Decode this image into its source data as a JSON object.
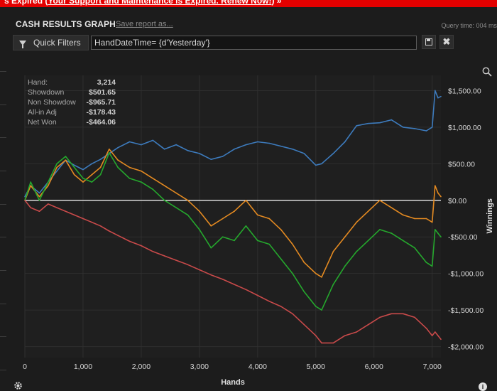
{
  "banner": {
    "prefix": "s   Expired (",
    "link_text": "Your Support and Maintenance is Expired. Renew Now!",
    "suffix": ")  »"
  },
  "header": {
    "title": "CASH RESULTS GRAPH",
    "save_link": "Save report as...",
    "query_time": "Query time: 004 ms"
  },
  "filter": {
    "quick_filters_label": "Quick Filters",
    "value": "HandDateTime= {d'Yesterday'}"
  },
  "stats": [
    {
      "label": "Hand:",
      "value": "3,214"
    },
    {
      "label": "Showdown",
      "value": "$501.65"
    },
    {
      "label": "Non Showdow",
      "value": "-$965.71"
    },
    {
      "label": "All-in Adj",
      "value": "-$178.43"
    },
    {
      "label": "Net Won",
      "value": "-$464.06"
    }
  ],
  "colors": {
    "blue": "#3d7bbd",
    "orange": "#e48a21",
    "green": "#25a82d",
    "red": "#c94a4a",
    "zero": "#e8e8e8",
    "background": "#1c1c1c",
    "grid": "#2f2f2f"
  },
  "chart_data": {
    "type": "line",
    "xlabel": "Hands",
    "ylabel": "Winnings",
    "xlim": [
      0,
      7150
    ],
    "ylim": [
      -2150,
      1650
    ],
    "x_ticks": [
      0,
      1000,
      2000,
      3000,
      4000,
      5000,
      6000,
      7000
    ],
    "x_tick_labels": [
      "0",
      "1,000",
      "2,000",
      "3,000",
      "4,000",
      "5,000",
      "6,000",
      "7,000"
    ],
    "y_ticks": [
      1500,
      1000,
      500,
      0,
      -500,
      -1000,
      -1500,
      -2000
    ],
    "y_tick_labels": [
      "$1,500.00",
      "$1,000.00",
      "$500.00",
      "$0.00",
      "-$500.00",
      "-$1,000.00",
      "-$1,500.00",
      "-$2,000.00"
    ],
    "grid": true,
    "series": [
      {
        "color_key": "blue",
        "x": [
          0,
          100,
          250,
          400,
          550,
          700,
          850,
          1000,
          1150,
          1300,
          1450,
          1600,
          1800,
          2000,
          2200,
          2400,
          2600,
          2800,
          3000,
          3200,
          3400,
          3600,
          3800,
          4000,
          4200,
          4400,
          4600,
          4800,
          5000,
          5100,
          5300,
          5500,
          5700,
          5900,
          6100,
          6300,
          6500,
          6700,
          6900,
          7000,
          7050,
          7100,
          7150
        ],
        "values": [
          50,
          200,
          100,
          250,
          400,
          550,
          480,
          420,
          500,
          560,
          640,
          720,
          800,
          760,
          820,
          700,
          760,
          680,
          640,
          560,
          600,
          700,
          760,
          800,
          780,
          740,
          700,
          640,
          480,
          500,
          640,
          800,
          1020,
          1050,
          1060,
          1100,
          1000,
          980,
          950,
          1000,
          1500,
          1400,
          1420
        ]
      },
      {
        "color_key": "orange",
        "x": [
          0,
          100,
          250,
          400,
          550,
          700,
          850,
          1000,
          1150,
          1300,
          1450,
          1600,
          1800,
          2000,
          2200,
          2400,
          2600,
          2800,
          3000,
          3200,
          3400,
          3600,
          3800,
          4000,
          4200,
          4400,
          4600,
          4800,
          5000,
          5100,
          5300,
          5500,
          5700,
          5900,
          6100,
          6300,
          6500,
          6700,
          6900,
          7000,
          7050,
          7100,
          7150
        ],
        "values": [
          0,
          200,
          50,
          200,
          450,
          550,
          350,
          250,
          350,
          450,
          700,
          550,
          450,
          400,
          300,
          200,
          100,
          0,
          -150,
          -350,
          -250,
          -150,
          0,
          -200,
          -250,
          -400,
          -600,
          -850,
          -1000,
          -1050,
          -700,
          -500,
          -300,
          -150,
          0,
          -100,
          -200,
          -250,
          -250,
          -300,
          200,
          100,
          50
        ]
      },
      {
        "color_key": "green",
        "x": [
          0,
          100,
          250,
          400,
          550,
          700,
          850,
          1000,
          1150,
          1300,
          1450,
          1600,
          1800,
          2000,
          2200,
          2400,
          2600,
          2800,
          3000,
          3200,
          3400,
          3600,
          3800,
          4000,
          4200,
          4400,
          4600,
          4800,
          5000,
          5100,
          5300,
          5500,
          5700,
          5900,
          6100,
          6300,
          6500,
          6700,
          6900,
          7000,
          7050,
          7100,
          7150
        ],
        "values": [
          0,
          250,
          0,
          250,
          500,
          600,
          450,
          300,
          250,
          350,
          650,
          450,
          300,
          250,
          150,
          0,
          -100,
          -200,
          -400,
          -650,
          -500,
          -550,
          -350,
          -550,
          -600,
          -800,
          -1000,
          -1250,
          -1450,
          -1500,
          -1150,
          -900,
          -700,
          -550,
          -400,
          -450,
          -550,
          -650,
          -850,
          -900,
          -400,
          -450,
          -500
        ]
      },
      {
        "color_key": "red",
        "x": [
          0,
          100,
          250,
          400,
          550,
          700,
          850,
          1000,
          1150,
          1300,
          1450,
          1600,
          1800,
          2000,
          2200,
          2400,
          2600,
          2800,
          3000,
          3200,
          3400,
          3600,
          3800,
          4000,
          4200,
          4400,
          4600,
          4800,
          5000,
          5100,
          5300,
          5500,
          5700,
          5900,
          6100,
          6300,
          6500,
          6700,
          6900,
          7000,
          7050,
          7100,
          7150
        ],
        "values": [
          0,
          -100,
          -150,
          -50,
          -100,
          -150,
          -200,
          -250,
          -300,
          -350,
          -420,
          -480,
          -560,
          -620,
          -700,
          -760,
          -820,
          -880,
          -950,
          -1020,
          -1080,
          -1150,
          -1220,
          -1300,
          -1380,
          -1450,
          -1550,
          -1700,
          -1850,
          -1950,
          -1950,
          -1850,
          -1800,
          -1700,
          -1600,
          -1550,
          -1550,
          -1600,
          -1750,
          -1850,
          -1800,
          -1850,
          -1900
        ]
      }
    ]
  }
}
